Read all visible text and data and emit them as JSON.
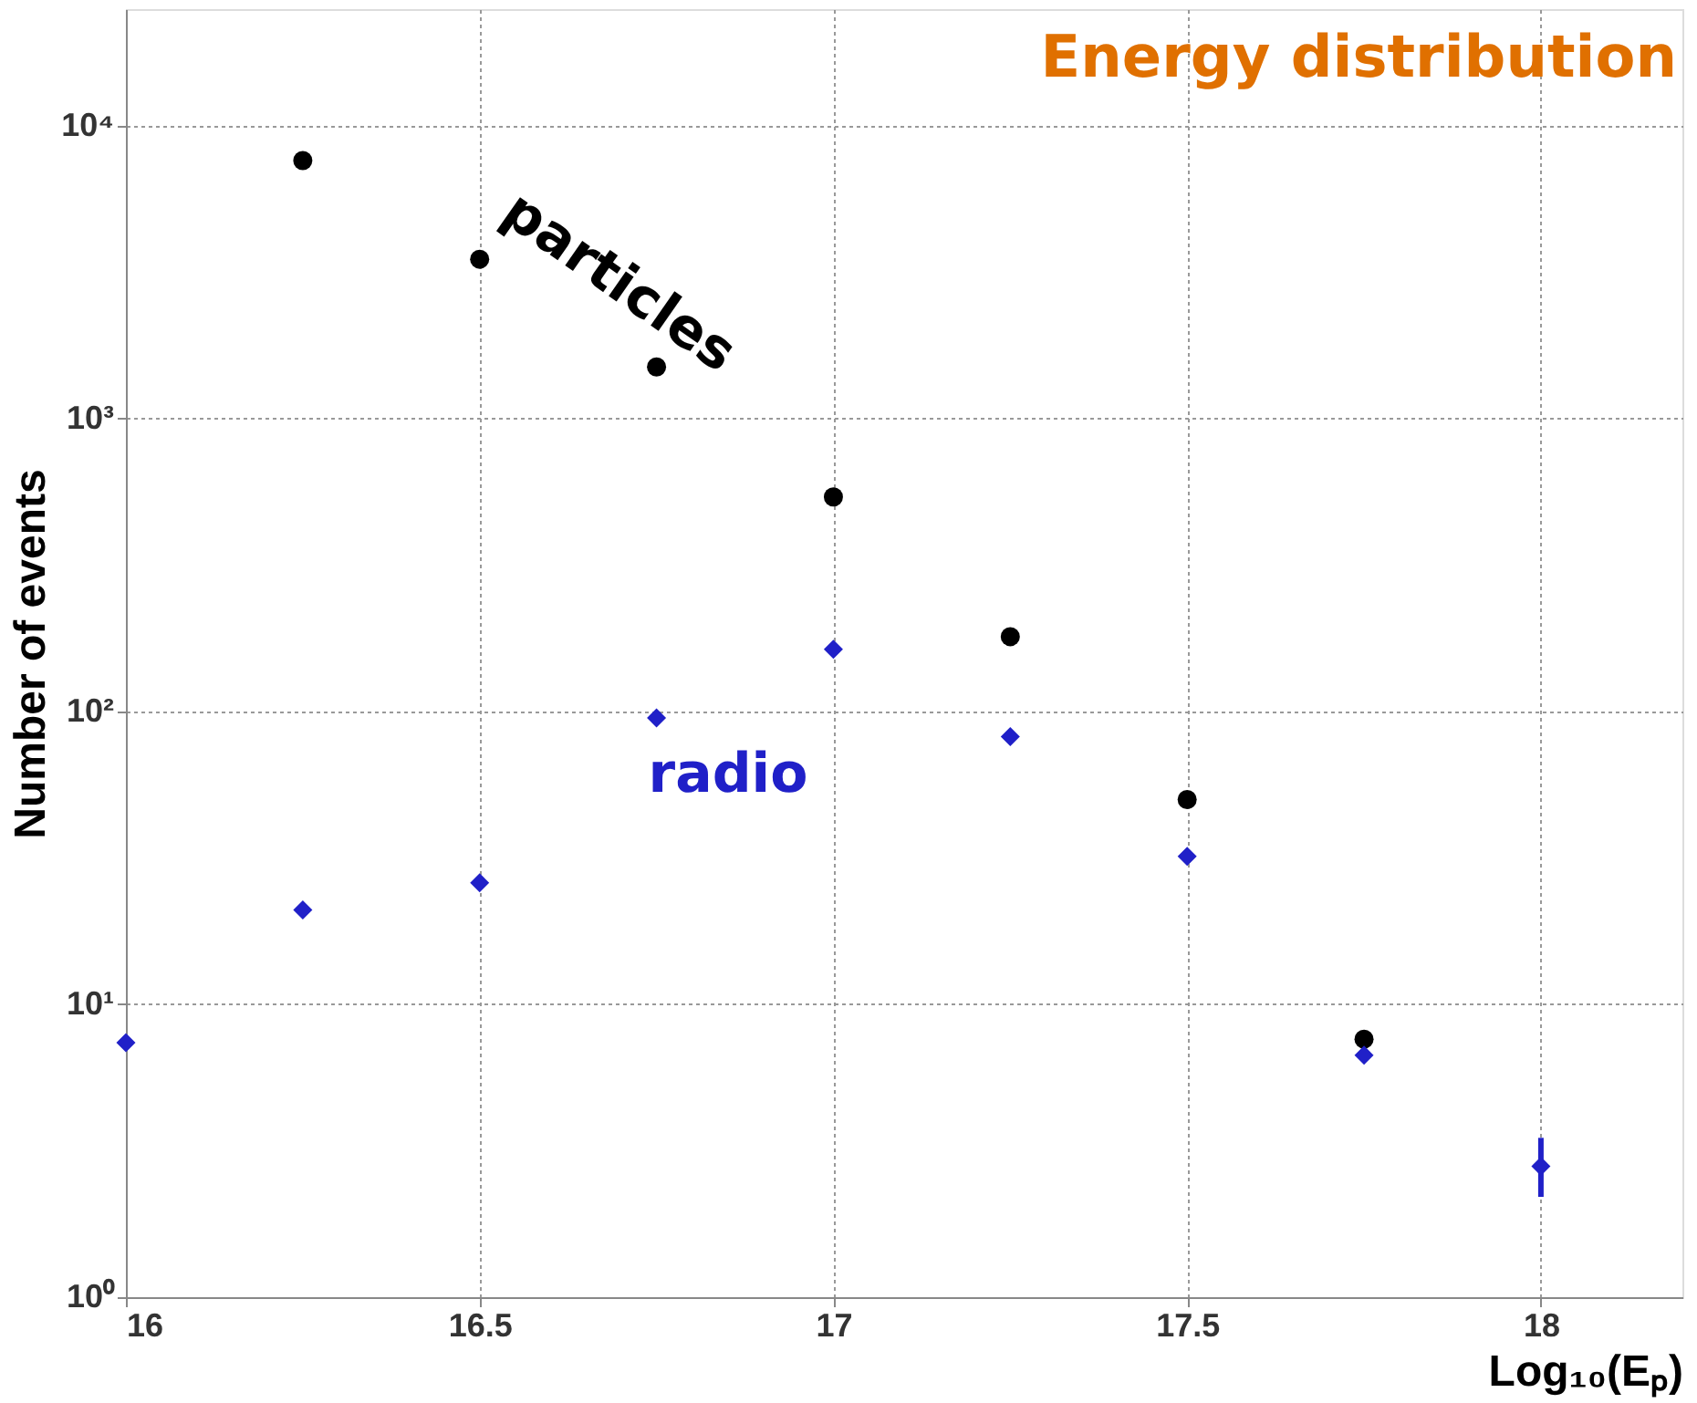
{
  "chart_data": {
    "type": "scatter",
    "title": "Energy distribution",
    "xlabel": "Log₁₀(Eₚ)",
    "ylabel": "Number of events",
    "x": [
      16,
      16.25,
      16.5,
      16.75,
      17,
      17.25,
      17.5,
      17.75,
      18
    ],
    "series": [
      {
        "name": "particles",
        "color": "#000000",
        "marker": "circle",
        "values": [
          null,
          7600,
          3500,
          1500,
          540,
          180,
          50,
          7.6,
          null
        ]
      },
      {
        "name": "radio",
        "color": "#2020c8",
        "marker": "diamond",
        "values": [
          7.4,
          21,
          26,
          95,
          163,
          82,
          32,
          6.7,
          2.8
        ],
        "errors": [
          null,
          null,
          null,
          null,
          null,
          null,
          null,
          null,
          [
            2.2,
            3.5
          ]
        ]
      }
    ],
    "log": true,
    "xlim": [
      16,
      18.2
    ],
    "xticks": [
      16,
      16.5,
      17,
      17.5,
      18
    ],
    "ylim": [
      1,
      25000
    ],
    "yticks": [
      {
        "value": 1,
        "label": "10⁰"
      },
      {
        "value": 10,
        "label": "10¹"
      },
      {
        "value": 100,
        "label": "10²"
      },
      {
        "value": 1000,
        "label": "10³"
      },
      {
        "value": 10000,
        "label": "10⁴"
      }
    ],
    "grid": true
  }
}
